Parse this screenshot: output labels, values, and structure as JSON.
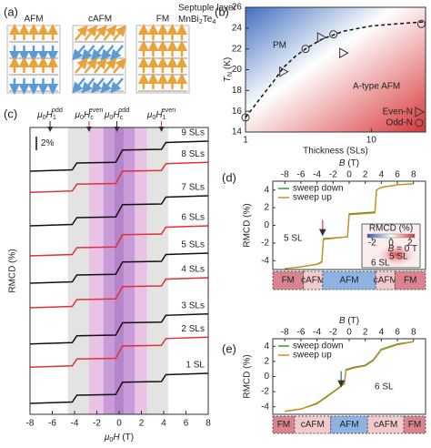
{
  "panel_labels": [
    "(a)",
    "(b)",
    "(c)",
    "(d)",
    "(e)"
  ],
  "schematic": {
    "states": [
      "AFM",
      "cAFM",
      "FM"
    ],
    "layer_label": "Septuple layer",
    "layer_formula": {
      "parts": [
        "MnBi",
        "2",
        "Te",
        "4"
      ],
      "styles": [
        "r",
        "sub",
        "r",
        "sub"
      ]
    }
  },
  "chart_data": [
    {
      "type": "scatter",
      "x_label": "Thickness (SLs)",
      "y_label": {
        "parts": [
          "T",
          "N",
          " (K)"
        ],
        "styles": [
          "i",
          "sub",
          "r"
        ]
      },
      "log_x": true,
      "xlim": [
        1,
        27
      ],
      "xticks": [
        1,
        10
      ],
      "ylim": [
        14,
        26
      ],
      "yticks": [
        14,
        16,
        18,
        20,
        22,
        24,
        26
      ],
      "annotations": [
        "PM",
        "A-type AFM"
      ],
      "legend": "bottom-right",
      "series": [
        {
          "name": "Even-N",
          "marker": "triangle",
          "color": "#333333",
          "x": [
            2,
            4,
            6
          ],
          "values": [
            19.8,
            23.1,
            21.6
          ]
        },
        {
          "name": "Odd-N",
          "marker": "circle",
          "color": "#333333",
          "x": [
            1,
            3,
            5,
            25
          ],
          "values": [
            15.4,
            22,
            23.4,
            24.4
          ]
        }
      ],
      "fit": {
        "x": [
          1,
          1.3,
          1.7,
          2,
          2.5,
          3,
          4,
          6,
          10,
          20,
          27
        ],
        "values": [
          15.4,
          17.2,
          19,
          20.2,
          21.3,
          22,
          22.9,
          23.7,
          24.2,
          24.5,
          24.6
        ]
      }
    },
    {
      "type": "line",
      "x_label": {
        "parts": [
          "μ",
          "0",
          "H",
          " (T)"
        ],
        "styles": [
          "i",
          "sub",
          "i",
          "r"
        ]
      },
      "y_label": "RMCD (%)",
      "xlim": [
        -8,
        8
      ],
      "xticks": [
        -8,
        -6,
        -4,
        -2,
        0,
        2,
        4,
        6,
        8
      ],
      "ylim": [
        0,
        42
      ],
      "scale_bar": {
        "value": 2,
        "label": "2%"
      },
      "field_labels": [
        {
          "parts": [
            "μ",
            "0",
            "H",
            "1",
            "odd"
          ],
          "styles": [
            "i",
            "sub",
            "i",
            "sub",
            "sup"
          ],
          "color": "#222222"
        },
        {
          "parts": [
            "μ",
            "0",
            "H",
            "c",
            "even"
          ],
          "styles": [
            "i",
            "sub",
            "i",
            "sub",
            "sup"
          ],
          "color": "#e0303a"
        },
        {
          "parts": [
            "μ",
            "0",
            "H",
            "c",
            "odd"
          ],
          "styles": [
            "i",
            "sub",
            "i",
            "sub",
            "sup"
          ],
          "color": "#222222"
        },
        {
          "parts": [
            "μ",
            "0",
            "H",
            "1",
            "even"
          ],
          "styles": [
            "i",
            "sub",
            "i",
            "sub",
            "sup"
          ],
          "color": "#e0303a"
        }
      ],
      "x": [
        -8,
        -4.2,
        -3.8,
        -0.3,
        0.3,
        3.8,
        4.2,
        8
      ],
      "series": [
        {
          "name": "9 SLs",
          "color": "#111111",
          "values": [
            35.6,
            35.8,
            36.8,
            36.9,
            38.7,
            38.8,
            39.8,
            40
          ]
        },
        {
          "name": "8 SLs",
          "color": "#e0303a",
          "values": [
            32.5,
            32.7,
            33.7,
            33.8,
            35.6,
            35.7,
            36.7,
            36.9
          ]
        },
        {
          "name": "7 SLs",
          "color": "#111111",
          "values": [
            27.6,
            27.8,
            28.8,
            28.9,
            30.7,
            30.8,
            31.8,
            32
          ]
        },
        {
          "name": "6 SLs",
          "color": "#e0303a",
          "values": [
            23.2,
            23.4,
            24.4,
            24.5,
            26.3,
            26.4,
            27.4,
            27.6
          ]
        },
        {
          "name": "5 SLs",
          "color": "#111111",
          "values": [
            19.2,
            19.4,
            20.4,
            20.5,
            22.3,
            22.4,
            23.4,
            23.6
          ]
        },
        {
          "name": "4 SLs",
          "color": "#e0303a",
          "values": [
            15.6,
            15.8,
            16.8,
            16.9,
            18.7,
            18.8,
            19.8,
            20
          ]
        },
        {
          "name": "3 SLs",
          "color": "#111111",
          "values": [
            10.3,
            10.5,
            11.5,
            11.6,
            13.4,
            13.5,
            14.5,
            14.7
          ]
        },
        {
          "name": "2 SLs",
          "color": "#e0303a",
          "values": [
            6.9,
            7.1,
            8.1,
            8.2,
            10,
            10.1,
            11.1,
            11.3
          ]
        },
        {
          "name": "1 SL",
          "color": "#111111",
          "values": [
            1.6,
            1.8,
            2.8,
            2.9,
            4.7,
            4.8,
            5.8,
            6
          ]
        }
      ]
    },
    {
      "type": "line",
      "x_label": {
        "parts": [
          "B",
          " (T)"
        ],
        "styles": [
          "i",
          "r"
        ]
      },
      "y_label": "RMCD (%)",
      "xlim": [
        -9.5,
        9.5
      ],
      "xticks": [
        -8,
        -6,
        -4,
        -2,
        0,
        2,
        4,
        6,
        8
      ],
      "ylim": [
        -5,
        5
      ],
      "yticks": [
        -4,
        -2,
        0,
        2,
        4
      ],
      "legend": "top-left",
      "annotation": "5 SL",
      "x": [
        -8,
        -6,
        -4,
        -3.4,
        -3.2,
        -0.2,
        0,
        3.2,
        3.4,
        4,
        6,
        8
      ],
      "series": [
        {
          "name": "sweep down",
          "color": "#2e9a3a",
          "values": [
            -4.9,
            -4.7,
            -4.4,
            -4.1,
            -1.5,
            -1.3,
            1.3,
            1.5,
            4,
            4.3,
            4.6,
            4.7
          ]
        },
        {
          "name": "sweep up",
          "color": "#d98c1a",
          "values": [
            -4.9,
            -4.7,
            -4.4,
            -4.2,
            -1.6,
            -1.3,
            1.2,
            1.4,
            4,
            4.3,
            4.6,
            4.7
          ]
        }
      ],
      "regions": [
        {
          "label": "FM",
          "from": -9.5,
          "to": -5.7,
          "color": "#d9848f"
        },
        {
          "label": "cAFM",
          "from": -5.7,
          "to": -3.3,
          "color": "#f2c9cd"
        },
        {
          "label": "AFM",
          "from": -3.3,
          "to": 3.3,
          "color": "#8db3e2"
        },
        {
          "label": "cAFM",
          "from": 3.3,
          "to": 5.7,
          "color": "#f2c9cd"
        },
        {
          "label": "FM",
          "from": 5.7,
          "to": 9.5,
          "color": "#d9848f"
        }
      ],
      "inset": {
        "title": "RMCD (%)",
        "colorbar_lim": [
          -2.5,
          2.5
        ],
        "colorbar_ticks": [
          -2,
          0,
          2
        ],
        "field": {
          "parts": [
            "B",
            " = 0 T"
          ],
          "styles": [
            "i",
            "r"
          ]
        },
        "labels": [
          "5 SL",
          "6 SL"
        ]
      }
    },
    {
      "type": "line",
      "x_label": {
        "parts": [
          "B",
          " (T)"
        ],
        "styles": [
          "i",
          "r"
        ]
      },
      "y_label": "RMCD (%)",
      "xlim": [
        -9.5,
        9.5
      ],
      "xticks": [
        -8,
        -6,
        -4,
        -2,
        0,
        2,
        4,
        6,
        8
      ],
      "ylim": [
        -5,
        5
      ],
      "yticks": [
        -4,
        -2,
        0,
        2,
        4
      ],
      "legend": "top-left",
      "annotation": "6 SL",
      "x": [
        -8,
        -6,
        -4,
        -2,
        -1,
        -0.6,
        -0.4,
        0.5,
        2,
        3,
        4,
        6,
        8
      ],
      "series": [
        {
          "name": "sweep down",
          "color": "#2e9a3a",
          "values": [
            -4.6,
            -4.3,
            -3.6,
            -2.1,
            -1.3,
            -0.9,
            0.9,
            1.2,
            1.5,
            2.2,
            3.6,
            4.3,
            4.6
          ]
        },
        {
          "name": "sweep up",
          "color": "#d98c1a",
          "values": [
            -4.6,
            -4.3,
            -3.5,
            -2,
            -1.2,
            -1,
            0.8,
            1.1,
            1.4,
            2.1,
            3.5,
            4.2,
            4.6
          ]
        }
      ],
      "regions": [
        {
          "label": "FM",
          "from": -9.5,
          "to": -6.8,
          "color": "#d9848f"
        },
        {
          "label": "cAFM",
          "from": -6.8,
          "to": -2.3,
          "color": "#f2c9cd"
        },
        {
          "label": "AFM",
          "from": -2.3,
          "to": 2.3,
          "color": "#8db3e2"
        },
        {
          "label": "cAFM",
          "from": 2.3,
          "to": 6.8,
          "color": "#f2c9cd"
        },
        {
          "label": "FM",
          "from": 6.8,
          "to": 9.5,
          "color": "#d9848f"
        }
      ]
    }
  ]
}
